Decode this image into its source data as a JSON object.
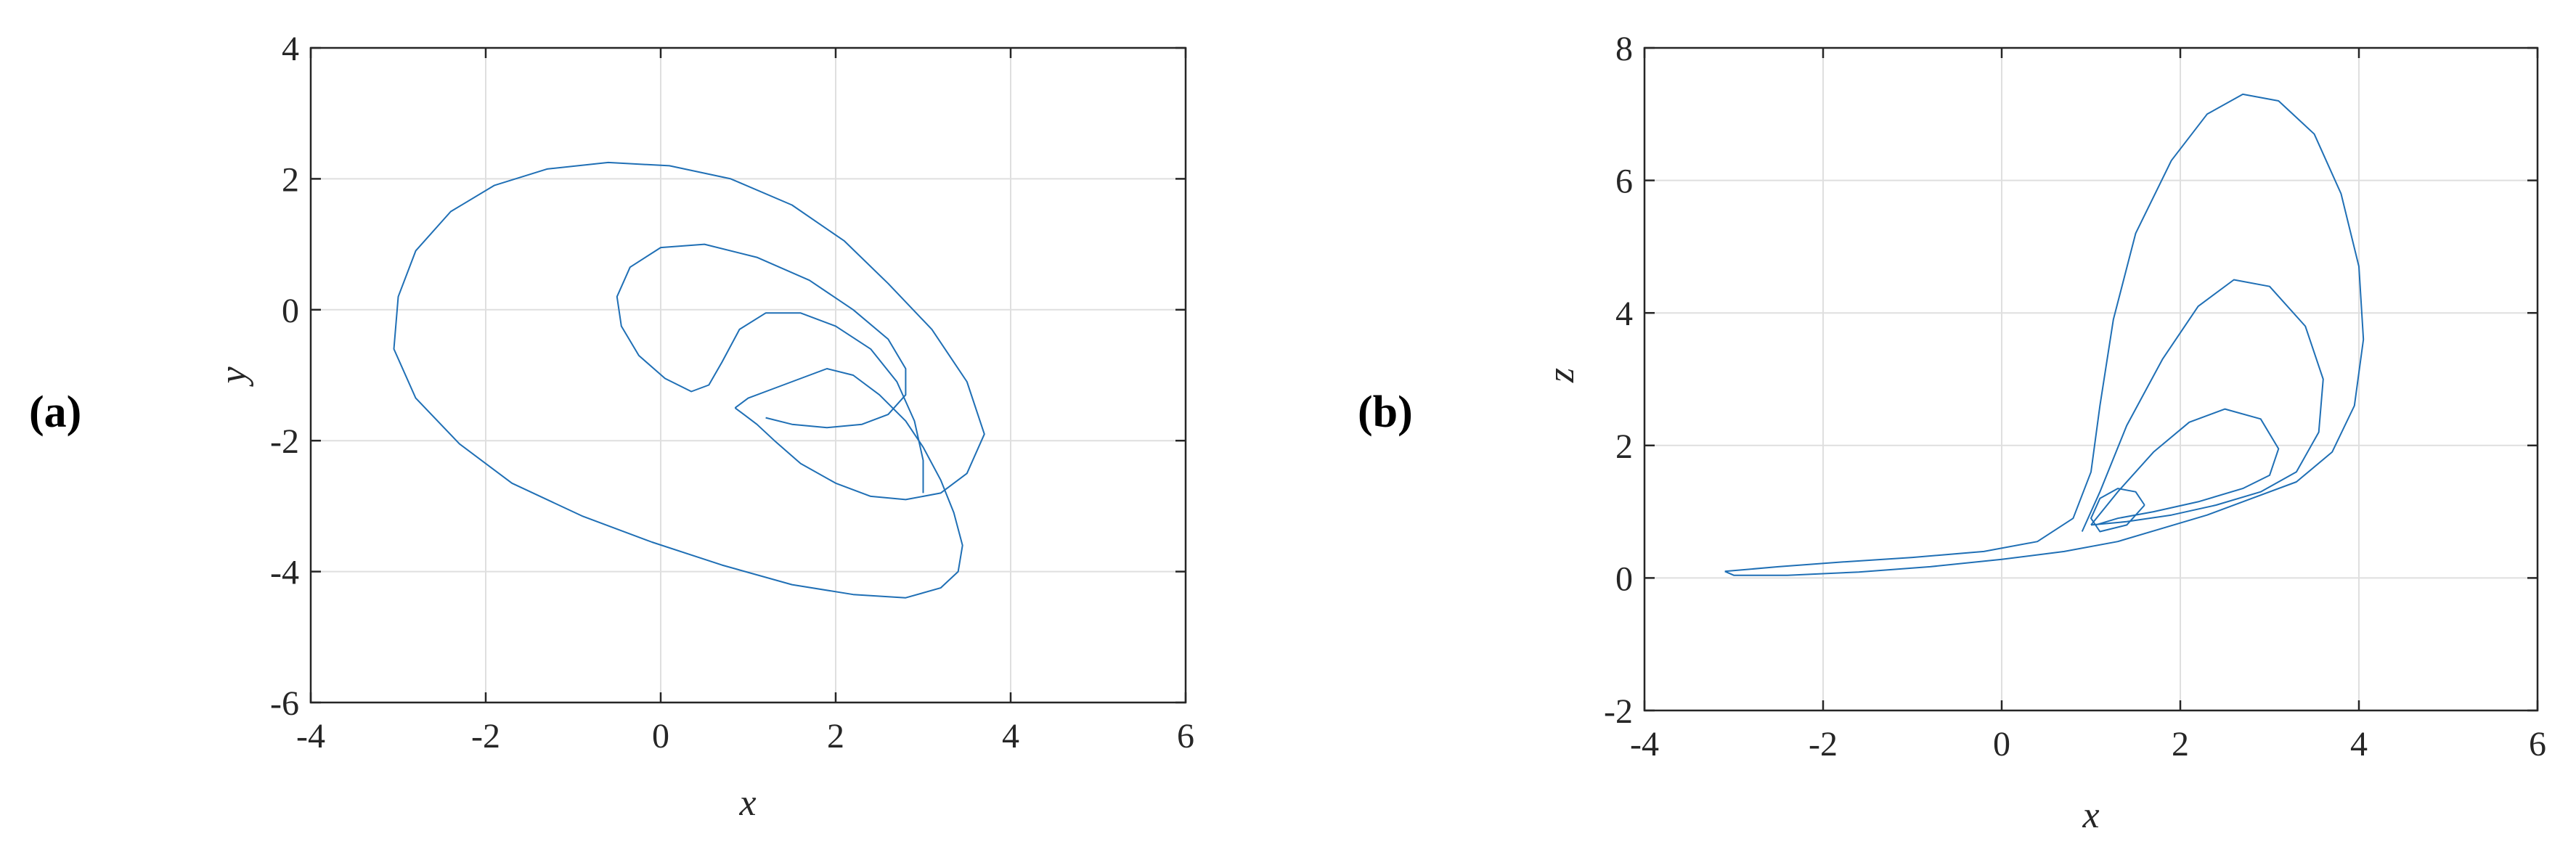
{
  "chart_data": [
    {
      "type": "line",
      "panel_label": "(a)",
      "xlabel": "x",
      "ylabel": "y",
      "xlim": [
        -4,
        6
      ],
      "ylim": [
        -6,
        4
      ],
      "xticks": [
        -4,
        -2,
        0,
        2,
        4,
        6
      ],
      "yticks": [
        -6,
        -4,
        -2,
        0,
        2,
        4
      ],
      "grid": true,
      "color": "#1f6fb5",
      "series": [
        {
          "x": [
            0.85,
            1.0,
            1.3,
            1.6,
            1.9,
            2.2,
            2.5,
            2.8,
            3.0,
            3.2,
            3.35,
            3.45,
            3.4,
            3.2,
            2.8,
            2.2,
            1.5,
            0.7,
            -0.1,
            -0.9,
            -1.7,
            -2.3,
            -2.8,
            -3.05,
            -3.0,
            -2.8,
            -2.4,
            -1.9,
            -1.3,
            -0.6,
            0.1,
            0.8,
            1.5,
            2.1,
            2.6,
            3.1,
            3.5,
            3.7,
            3.5,
            3.2,
            2.8,
            2.4,
            2.0,
            1.6,
            1.3,
            1.1,
            0.95,
            0.85
          ],
          "y": [
            -1.5,
            -1.35,
            -1.2,
            -1.05,
            -0.9,
            -1.0,
            -1.3,
            -1.7,
            -2.1,
            -2.6,
            -3.1,
            -3.6,
            -4.0,
            -4.25,
            -4.4,
            -4.35,
            -4.2,
            -3.9,
            -3.55,
            -3.15,
            -2.65,
            -2.05,
            -1.35,
            -0.6,
            0.2,
            0.9,
            1.5,
            1.9,
            2.15,
            2.25,
            2.2,
            2.0,
            1.6,
            1.05,
            0.4,
            -0.3,
            -1.1,
            -1.9,
            -2.5,
            -2.8,
            -2.9,
            -2.85,
            -2.65,
            -2.35,
            -2.0,
            -1.75,
            -1.6,
            -1.5
          ]
        },
        {
          "x": [
            1.2,
            1.5,
            1.9,
            2.3,
            2.6,
            2.8,
            2.8,
            2.6,
            2.2,
            1.7,
            1.1,
            0.5,
            0.0,
            -0.35,
            -0.5,
            -0.45,
            -0.25,
            0.05,
            0.35,
            0.55,
            0.7,
            0.9,
            1.2,
            1.6,
            2.0,
            2.4,
            2.7,
            2.9,
            3.0,
            3.0
          ],
          "y": [
            -1.65,
            -1.75,
            -1.8,
            -1.75,
            -1.6,
            -1.3,
            -0.9,
            -0.45,
            0.0,
            0.45,
            0.8,
            1.0,
            0.95,
            0.65,
            0.2,
            -0.25,
            -0.7,
            -1.05,
            -1.25,
            -1.15,
            -0.8,
            -0.3,
            -0.05,
            -0.05,
            -0.25,
            -0.6,
            -1.1,
            -1.7,
            -2.3,
            -2.8
          ]
        }
      ]
    },
    {
      "type": "line",
      "panel_label": "(b)",
      "xlabel": "x",
      "ylabel": "z",
      "xlim": [
        -4,
        6
      ],
      "ylim": [
        -2,
        8
      ],
      "xticks": [
        -4,
        -2,
        0,
        2,
        4,
        6
      ],
      "yticks": [
        -2,
        0,
        2,
        4,
        6,
        8
      ],
      "grid": true,
      "color": "#1f6fb5",
      "series": [
        {
          "x": [
            -3.1,
            -2.5,
            -1.8,
            -1.0,
            -0.2,
            0.4,
            0.8,
            1.0,
            1.1,
            1.25,
            1.5,
            1.9,
            2.3,
            2.7,
            3.1,
            3.5,
            3.8,
            4.0,
            4.05,
            3.95,
            3.7,
            3.3,
            2.8,
            2.3,
            1.8,
            1.3,
            0.7,
            0.0,
            -0.8,
            -1.6,
            -2.4,
            -3.0,
            -3.1
          ],
          "y": [
            0.1,
            0.17,
            0.24,
            0.31,
            0.4,
            0.55,
            0.9,
            1.6,
            2.6,
            3.9,
            5.2,
            6.3,
            7.0,
            7.3,
            7.2,
            6.7,
            5.8,
            4.7,
            3.6,
            2.6,
            1.9,
            1.45,
            1.2,
            0.95,
            0.75,
            0.55,
            0.4,
            0.28,
            0.17,
            0.09,
            0.04,
            0.04,
            0.1
          ]
        },
        {
          "x": [
            0.9,
            1.1,
            1.4,
            1.8,
            2.2,
            2.6,
            3.0,
            3.4,
            3.6,
            3.55,
            3.3,
            2.9,
            2.4,
            1.9,
            1.4,
            1.0
          ],
          "y": [
            0.7,
            1.3,
            2.3,
            3.3,
            4.1,
            4.5,
            4.4,
            3.8,
            3.0,
            2.2,
            1.6,
            1.3,
            1.1,
            0.95,
            0.85,
            0.8
          ]
        },
        {
          "x": [
            1.0,
            1.3,
            1.7,
            2.1,
            2.5,
            2.9,
            3.1,
            3.0,
            2.7,
            2.2,
            1.7,
            1.3,
            1.05
          ],
          "y": [
            0.8,
            1.3,
            1.9,
            2.35,
            2.55,
            2.4,
            1.95,
            1.55,
            1.35,
            1.15,
            1.0,
            0.9,
            0.8
          ]
        },
        {
          "x": [
            1.6,
            1.5,
            1.3,
            1.1,
            1.0,
            1.1,
            1.4,
            1.6
          ],
          "y": [
            1.1,
            1.3,
            1.35,
            1.2,
            0.9,
            0.7,
            0.8,
            1.1
          ]
        }
      ]
    }
  ]
}
